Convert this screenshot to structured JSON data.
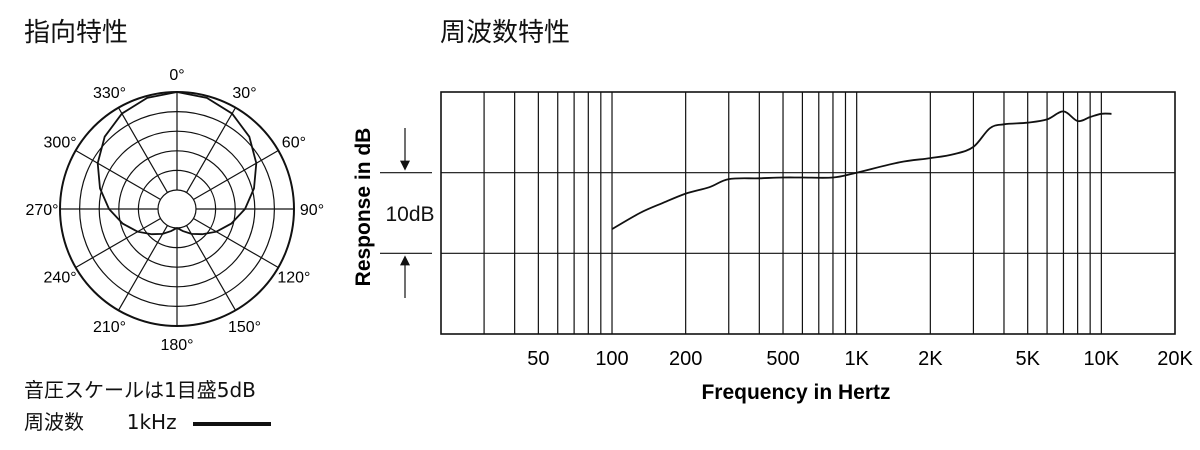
{
  "polar": {
    "title": "指向特性",
    "angle_labels": [
      "0°",
      "30°",
      "60°",
      "90°",
      "120°",
      "150°",
      "180°",
      "210°",
      "240°",
      "270°",
      "300°",
      "330°"
    ],
    "scale_note": "音圧スケールは1目盛5dB",
    "freq_label": "周波数",
    "freq_value": "1kHz"
  },
  "frequency": {
    "title": "周波数特性",
    "ylabel": "Response in dB",
    "xlabel": "Frequency in Hertz",
    "scale_label": "10dB"
  },
  "chart_data": [
    {
      "type": "line",
      "subtype": "polar",
      "title": "指向特性",
      "angle_unit": "degrees",
      "angle_ticks": [
        0,
        30,
        60,
        90,
        120,
        150,
        180,
        210,
        240,
        270,
        300,
        330
      ],
      "rings": 5,
      "ring_step_db": 5,
      "series": [
        {
          "name": "1kHz",
          "theta": [
            0,
            15,
            30,
            45,
            60,
            75,
            90,
            105,
            120,
            135,
            150,
            165,
            180
          ],
          "r_norm": [
            1.0,
            0.98,
            0.93,
            0.85,
            0.74,
            0.62,
            0.5,
            0.38,
            0.27,
            0.17,
            0.1,
            0.04,
            0.0
          ]
        }
      ],
      "color": "#111111"
    },
    {
      "type": "line",
      "title": "周波数特性",
      "xscale": "log",
      "xlim": [
        20,
        20000
      ],
      "x_tick_labels": [
        "50",
        "100",
        "200",
        "500",
        "1K",
        "2K",
        "5K",
        "10K",
        "20K"
      ],
      "x_ticks": [
        50,
        100,
        200,
        500,
        1000,
        2000,
        5000,
        10000,
        20000
      ],
      "ylim": [
        -20,
        10
      ],
      "y_step_db": 10,
      "xlabel": "Frequency in Hertz",
      "ylabel": "Response in dB",
      "grid": true,
      "series": [
        {
          "x": [
            100,
            130,
            160,
            200,
            250,
            300,
            400,
            500,
            600,
            800,
            1000,
            1500,
            2000,
            2500,
            3000,
            3500,
            4000,
            5000,
            6000,
            7000,
            8000,
            9000,
            10000,
            11000
          ],
          "y": [
            -7,
            -5,
            -3.8,
            -2.6,
            -1.8,
            -0.8,
            -0.7,
            -0.6,
            -0.6,
            -0.6,
            0,
            1.3,
            1.8,
            2.3,
            3.2,
            5.5,
            6.0,
            6.2,
            6.6,
            7.6,
            6.4,
            6.9,
            7.3,
            7.3
          ]
        }
      ],
      "color": "#111111"
    }
  ]
}
